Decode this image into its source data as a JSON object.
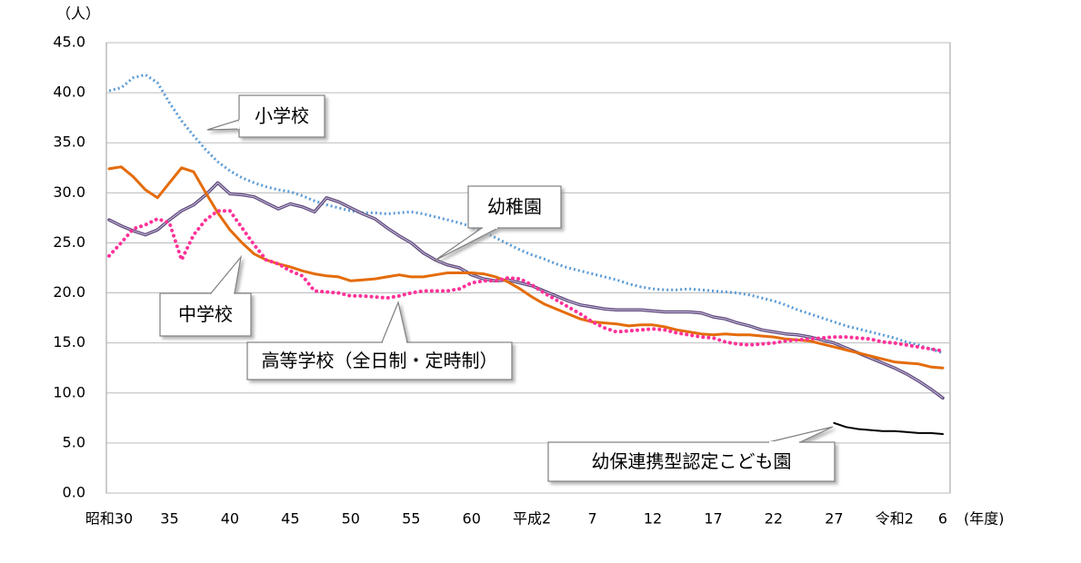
{
  "chart_data": {
    "type": "line",
    "y_label": "（人）",
    "x_label": "(年度)",
    "categories": [
      "昭和30",
      null,
      null,
      null,
      null,
      "35",
      null,
      null,
      null,
      null,
      "40",
      null,
      null,
      null,
      null,
      "45",
      null,
      null,
      null,
      null,
      "50",
      null,
      null,
      null,
      null,
      "55",
      null,
      null,
      null,
      null,
      "60",
      null,
      null,
      null,
      null,
      "平成2",
      null,
      null,
      null,
      null,
      "7",
      null,
      null,
      null,
      null,
      "12",
      null,
      null,
      null,
      null,
      "17",
      null,
      null,
      null,
      null,
      "22",
      null,
      null,
      null,
      null,
      "27",
      null,
      null,
      null,
      null,
      "令和2",
      null,
      null,
      null,
      "6"
    ],
    "ylim": [
      0,
      45
    ],
    "yticks": [
      {
        "value": 0,
        "label": "0.0"
      },
      {
        "value": 5,
        "label": "5.0"
      },
      {
        "value": 10,
        "label": "10.0"
      },
      {
        "value": 15,
        "label": "15.0"
      },
      {
        "value": 20,
        "label": "20.0"
      },
      {
        "value": 25,
        "label": "25.0"
      },
      {
        "value": 30,
        "label": "30.0"
      },
      {
        "value": 35,
        "label": "35.0"
      },
      {
        "value": 40,
        "label": "40.0"
      },
      {
        "value": 45,
        "label": "45.0"
      }
    ],
    "grid": true,
    "series": [
      {
        "name": "小学校",
        "color": "#5b9bd5",
        "style": "dotted",
        "values": [
          40.2,
          40.5,
          41.5,
          41.8,
          41.0,
          39.0,
          37.2,
          35.7,
          34.3,
          33.1,
          32.2,
          31.5,
          31.0,
          30.6,
          30.3,
          30.1,
          29.7,
          29.2,
          28.8,
          28.5,
          28.2,
          28.0,
          28.0,
          27.9,
          28.0,
          28.1,
          27.9,
          27.6,
          27.3,
          27.0,
          26.6,
          26.1,
          25.5,
          24.9,
          24.3,
          23.8,
          23.4,
          22.9,
          22.5,
          22.2,
          21.9,
          21.6,
          21.3,
          20.9,
          20.6,
          20.4,
          20.3,
          20.3,
          20.4,
          20.3,
          20.2,
          20.1,
          20.0,
          19.8,
          19.5,
          19.2,
          18.8,
          18.3,
          17.9,
          17.5,
          17.1,
          16.7,
          16.4,
          16.1,
          15.8,
          15.5,
          15.1,
          14.8,
          14.4,
          14.0
        ]
      },
      {
        "name": "幼稚園",
        "color": "#604a7b",
        "style": "double",
        "values": [
          27.3,
          26.7,
          26.2,
          25.8,
          26.3,
          27.3,
          28.2,
          28.8,
          29.8,
          31.0,
          29.9,
          29.8,
          29.6,
          29.0,
          28.4,
          28.9,
          28.6,
          28.1,
          29.5,
          29.1,
          28.5,
          27.9,
          27.4,
          26.5,
          25.7,
          25.0,
          24.0,
          23.3,
          22.8,
          22.5,
          21.8,
          21.4,
          21.2,
          21.3,
          21.0,
          20.7,
          20.2,
          19.7,
          19.2,
          18.8,
          18.6,
          18.4,
          18.3,
          18.3,
          18.3,
          18.2,
          18.1,
          18.1,
          18.1,
          18.0,
          17.6,
          17.4,
          17.0,
          16.7,
          16.3,
          16.1,
          15.9,
          15.8,
          15.6,
          15.3,
          15.0,
          14.5,
          14.0,
          13.5,
          13.0,
          12.5,
          11.9,
          11.2,
          10.4,
          9.5
        ]
      },
      {
        "name": "中学校",
        "color": "#e46c0a",
        "style": "solid",
        "values": [
          32.4,
          32.6,
          31.6,
          30.3,
          29.5,
          31.0,
          32.5,
          32.1,
          30.0,
          28.0,
          26.3,
          25.0,
          23.9,
          23.3,
          22.9,
          22.6,
          22.2,
          21.9,
          21.7,
          21.6,
          21.2,
          21.3,
          21.4,
          21.6,
          21.8,
          21.6,
          21.6,
          21.8,
          22.0,
          22.0,
          22.0,
          21.9,
          21.6,
          21.1,
          20.4,
          19.6,
          18.9,
          18.4,
          17.9,
          17.4,
          17.1,
          17.0,
          16.9,
          16.7,
          16.8,
          16.8,
          16.6,
          16.3,
          16.1,
          15.9,
          15.8,
          15.9,
          15.8,
          15.8,
          15.7,
          15.6,
          15.4,
          15.3,
          15.2,
          14.9,
          14.6,
          14.3,
          14.0,
          13.7,
          13.4,
          13.1,
          13.0,
          12.9,
          12.6,
          12.5
        ]
      },
      {
        "name": "高等学校（全日制・定時制）",
        "color": "#ff3399",
        "style": "dots",
        "values": [
          23.7,
          25.0,
          26.4,
          26.8,
          27.4,
          27.0,
          23.3,
          25.8,
          27.3,
          28.2,
          28.2,
          26.5,
          24.8,
          23.3,
          22.9,
          22.2,
          21.7,
          20.2,
          20.1,
          20.0,
          19.7,
          19.7,
          19.6,
          19.5,
          19.7,
          20.0,
          20.2,
          20.2,
          20.2,
          20.4,
          21.0,
          21.2,
          21.2,
          21.5,
          21.4,
          20.8,
          20.0,
          19.3,
          18.6,
          17.9,
          17.1,
          16.5,
          16.1,
          16.2,
          16.3,
          16.4,
          16.3,
          16.0,
          15.8,
          15.6,
          15.5,
          15.1,
          14.9,
          14.8,
          14.9,
          15.0,
          15.2,
          15.3,
          15.4,
          15.5,
          15.6,
          15.6,
          15.5,
          15.4,
          15.1,
          15.0,
          14.8,
          14.6,
          14.4,
          14.2
        ]
      },
      {
        "name": "幼保連携型認定こども園",
        "color": "#000000",
        "style": "solid",
        "values": [
          null,
          null,
          null,
          null,
          null,
          null,
          null,
          null,
          null,
          null,
          null,
          null,
          null,
          null,
          null,
          null,
          null,
          null,
          null,
          null,
          null,
          null,
          null,
          null,
          null,
          null,
          null,
          null,
          null,
          null,
          null,
          null,
          null,
          null,
          null,
          null,
          null,
          null,
          null,
          null,
          null,
          null,
          null,
          null,
          null,
          null,
          null,
          null,
          null,
          null,
          null,
          null,
          null,
          null,
          null,
          null,
          null,
          null,
          null,
          null,
          7.0,
          6.6,
          6.4,
          6.3,
          6.2,
          6.2,
          6.1,
          6.0,
          6.0,
          5.9
        ]
      }
    ]
  }
}
